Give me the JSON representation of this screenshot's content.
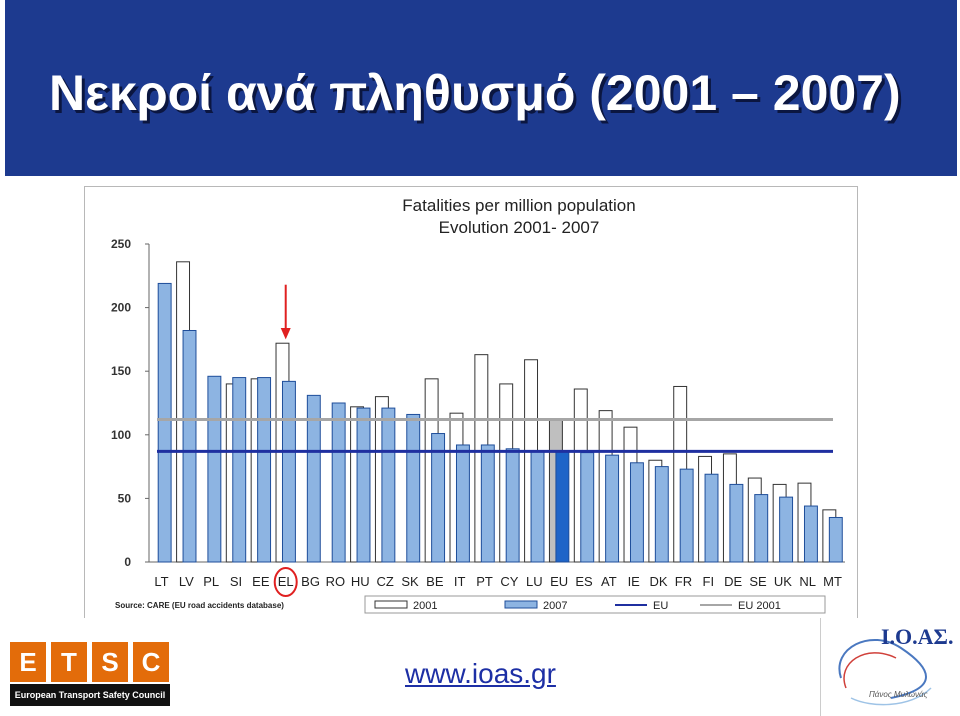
{
  "slide": {
    "title": "Νεκροί ανά πληθυσμό (2001 – 2007)",
    "website": "www.ioas.gr",
    "etsc": {
      "letters": [
        "E",
        "T",
        "S",
        "C"
      ],
      "colors": [
        "#e36c0a",
        "#e36c0a",
        "#e36c0a",
        "#e36c0a"
      ],
      "tagline": "European Transport Safety Council"
    },
    "ioas": {
      "name": "Ι.Ο.ΑΣ.",
      "sub": "Πάνος Μυλωνάς"
    }
  },
  "colors": {
    "header_bg": "#1d3a8f",
    "bar_2007": "#8db4e2",
    "bar_2007_border": "#1f4e9a",
    "eu_bar_2007": "#1e64c8",
    "bar_2001": "#ffffff",
    "eu_bar_2001": "#bfbfbf",
    "eu_line": "#1f2fa0",
    "eu2001_line": "#a6a6a6",
    "highlight": "#e02020"
  },
  "chart_data": {
    "type": "bar",
    "title": "Fatalities per million  population",
    "subtitle": "Evolution 2001- 2007",
    "categories": [
      "LT",
      "LV",
      "PL",
      "SI",
      "EE",
      "EL",
      "BG",
      "RO",
      "HU",
      "CZ",
      "SK",
      "BE",
      "IT",
      "PT",
      "CY",
      "LU",
      "EU",
      "ES",
      "AT",
      "IE",
      "DK",
      "FR",
      "FI",
      "DE",
      "SE",
      "UK",
      "NL",
      "MT"
    ],
    "series": [
      {
        "name": "2001",
        "values": [
          null,
          236,
          null,
          140,
          144,
          172,
          null,
          null,
          122,
          130,
          null,
          144,
          117,
          163,
          140,
          159,
          112,
          136,
          119,
          106,
          80,
          138,
          83,
          85,
          66,
          61,
          62,
          41
        ]
      },
      {
        "name": "2007",
        "values": [
          219,
          182,
          146,
          145,
          145,
          142,
          131,
          125,
          121,
          121,
          116,
          101,
          92,
          92,
          89,
          87,
          87,
          86,
          84,
          78,
          75,
          73,
          69,
          61,
          53,
          51,
          44,
          35
        ]
      }
    ],
    "reference_lines": [
      {
        "name": "EU",
        "value": 87
      },
      {
        "name": "EU 2001",
        "value": 112
      }
    ],
    "highlight_category": "EL",
    "ylim": [
      0,
      250
    ],
    "yticks": [
      0,
      50,
      100,
      150,
      200,
      250
    ],
    "legend": [
      "2001",
      "2007",
      "EU",
      "EU 2001"
    ],
    "source": "Source: CARE (EU road accidents database)",
    "legend_position": "bottom"
  }
}
